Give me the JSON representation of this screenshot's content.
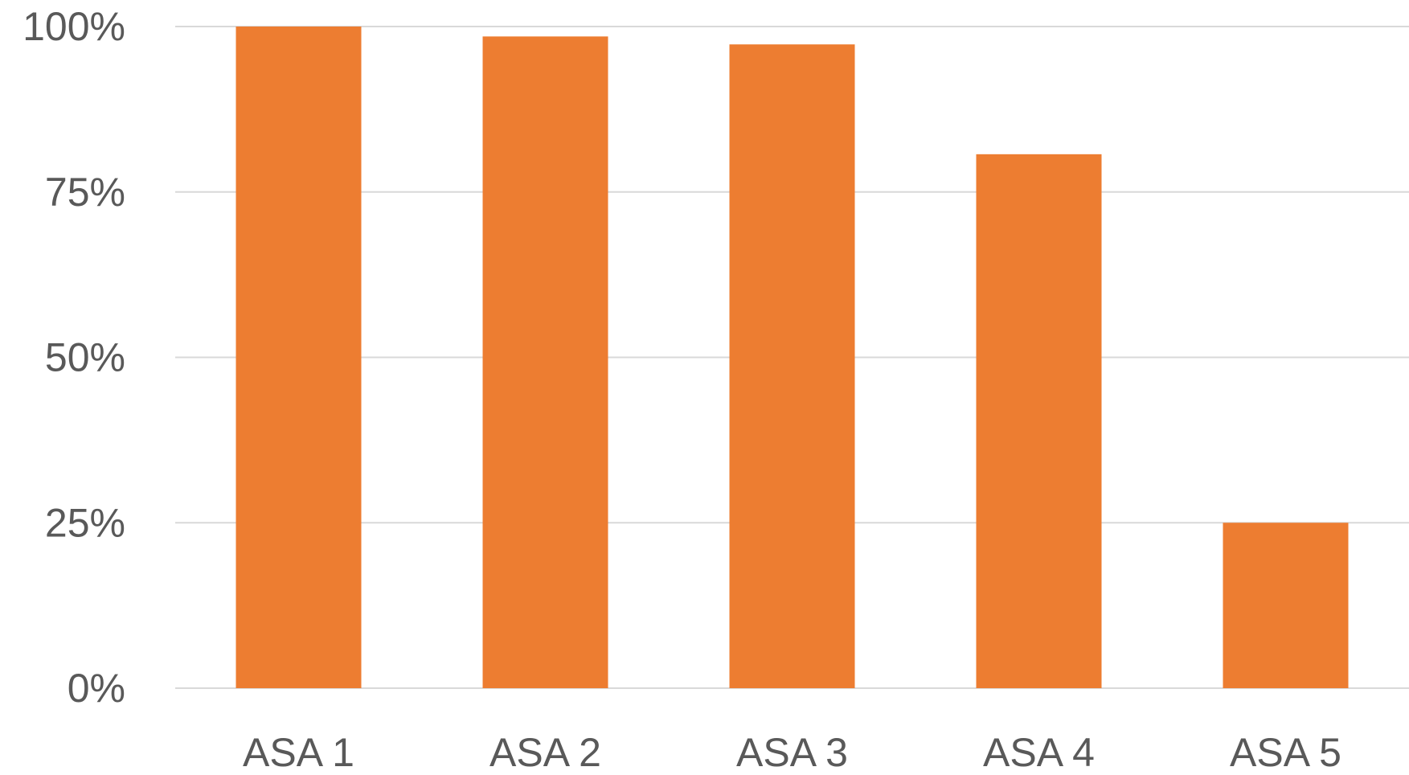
{
  "chart_data": {
    "type": "bar",
    "title": "",
    "xlabel": "",
    "ylabel": "",
    "categories": [
      "ASA 1",
      "ASA 2",
      "ASA 3",
      "ASA 4",
      "ASA 5"
    ],
    "values": [
      100,
      98.5,
      97.3,
      80.7,
      25
    ],
    "ylim": [
      0,
      100
    ],
    "yticks": [
      0,
      25,
      50,
      75,
      100
    ],
    "ytick_labels": [
      "0%",
      "25%",
      "50%",
      "75%",
      "100%"
    ],
    "grid": true,
    "legend": "none",
    "bar_color": "#ed7d31",
    "grid_color": "#d9d9d9",
    "label_color": "#595959"
  }
}
